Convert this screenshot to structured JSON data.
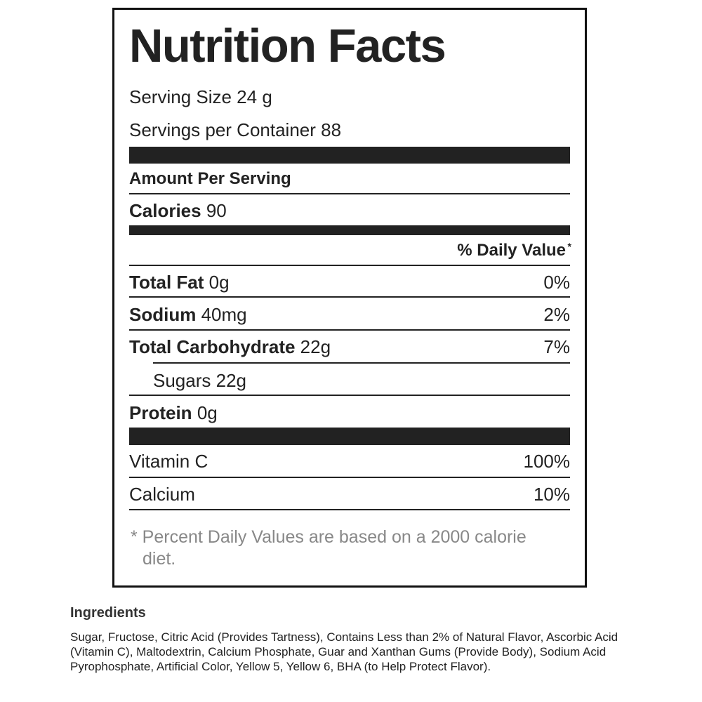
{
  "label": {
    "title": "Nutrition Facts",
    "serving_size": "Serving Size 24 g",
    "servings_per_container": "Servings per Container 88",
    "amount_per_serving": "Amount Per Serving",
    "calories": {
      "name": "Calories",
      "amount": "90"
    },
    "daily_value_header": "% Daily Value",
    "daily_value_mark": "*",
    "nutrients": [
      {
        "name": "Total Fat",
        "amount": "0g",
        "daily_value": "0%"
      },
      {
        "name": "Sodium",
        "amount": "40mg",
        "daily_value": "2%"
      },
      {
        "name": "Total Carbohydrate",
        "amount": "22g",
        "daily_value": "7%"
      },
      {
        "name": "Sugars 22g"
      },
      {
        "name": "Protein",
        "amount": "0g"
      }
    ],
    "vitamins": [
      {
        "name": "Vitamin C",
        "daily_value": "100%"
      },
      {
        "name": "Calcium",
        "daily_value": "10%"
      }
    ],
    "footnote": "* Percent Daily Values are based on a 2000 calorie diet."
  },
  "ingredients": {
    "title": "Ingredients",
    "text": "Sugar, Fructose, Citric Acid (Provides Tartness), Contains Less than 2% of Natural Flavor, Ascorbic Acid (Vitamin C), Maltodextrin, Calcium Phosphate, Guar and Xanthan Gums (Provide Body), Sodium Acid Pyrophosphate, Artificial Color, Yellow 5, Yellow 6, BHA (to Help Protect Flavor)."
  }
}
